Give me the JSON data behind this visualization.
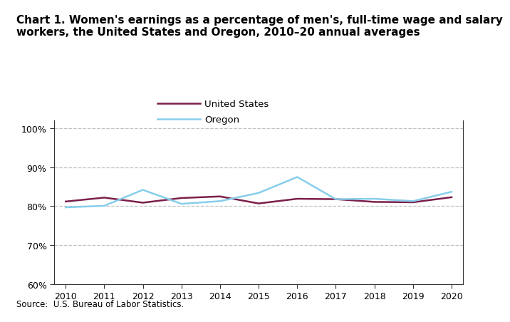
{
  "years": [
    2010,
    2011,
    2012,
    2013,
    2014,
    2015,
    2016,
    2017,
    2018,
    2019,
    2020
  ],
  "us_values": [
    81.2,
    82.2,
    80.9,
    82.1,
    82.5,
    80.7,
    81.9,
    81.8,
    81.1,
    81.0,
    82.3
  ],
  "oregon_values": [
    79.7,
    80.1,
    84.2,
    80.6,
    81.3,
    83.4,
    87.5,
    81.8,
    81.9,
    81.3,
    83.7
  ],
  "us_color": "#7B1F4B",
  "oregon_color": "#87CEEB",
  "us_label": "United States",
  "oregon_label": "Oregon",
  "title": "Chart 1. Women's earnings as a percentage of men's, full-time wage and salary\nworkers, the United States and Oregon, 2010–20 annual averages",
  "source": "Source:  U.S. Bureau of Labor Statistics.",
  "ylim": [
    60,
    102
  ],
  "yticks": [
    60,
    70,
    80,
    90,
    100
  ],
  "ytick_labels": [
    "60%",
    "70%",
    "80%",
    "90%",
    "100%"
  ],
  "background_color": "#ffffff",
  "grid_color": "#c0c0c0",
  "line_width": 1.8,
  "legend_fontsize": 9.5,
  "axis_fontsize": 9,
  "title_fontsize": 11
}
